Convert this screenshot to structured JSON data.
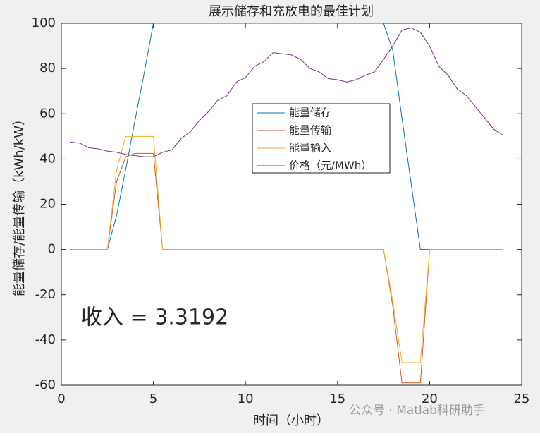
{
  "chart_data": {
    "type": "line",
    "title": "展示储存和充放电的最佳计划",
    "xlabel": "时间（小时）",
    "ylabel": "能量储存/能量传输（kWh/kW）",
    "annotation": "收入 = 3.3192",
    "watermark": "公众号 · Matlab科研助手",
    "x": [
      0.5,
      1,
      1.5,
      2,
      2.5,
      3,
      3.5,
      4,
      4.5,
      5,
      5.5,
      6,
      6.5,
      7,
      7.5,
      8,
      8.5,
      9,
      9.5,
      10,
      10.5,
      11,
      11.5,
      12,
      12.5,
      13,
      13.5,
      14,
      14.5,
      15,
      15.5,
      16,
      16.5,
      17,
      17.5,
      18,
      18.5,
      19,
      19.5,
      20,
      20.5,
      21,
      21.5,
      22,
      22.5,
      23,
      23.5,
      24
    ],
    "series": [
      {
        "name": "能量储存",
        "color": "#0072BD",
        "values": [
          0,
          0,
          0,
          0,
          0,
          15,
          35.5,
          57,
          78,
          100,
          100,
          100,
          100,
          100,
          100,
          100,
          100,
          100,
          100,
          100,
          100,
          100,
          100,
          100,
          100,
          100,
          100,
          100,
          100,
          100,
          100,
          100,
          100,
          100,
          100,
          88,
          58,
          29,
          0,
          0,
          0,
          0,
          0,
          0,
          0,
          0,
          0,
          0
        ]
      },
      {
        "name": "能量传输",
        "color": "#D95319",
        "values": [
          0,
          0,
          0,
          0,
          0,
          30,
          41,
          42.5,
          42.5,
          42.5,
          0,
          0,
          0,
          0,
          0,
          0,
          0,
          0,
          0,
          0,
          0,
          0,
          0,
          0,
          0,
          0,
          0,
          0,
          0,
          0,
          0,
          0,
          0,
          0,
          0,
          -25,
          -59,
          -59,
          -59,
          0,
          0,
          0,
          0,
          0,
          0,
          0,
          0,
          0
        ]
      },
      {
        "name": "能量输入",
        "color": "#EDB120",
        "values": [
          0,
          0,
          0,
          0,
          0,
          35,
          50,
          50,
          50,
          50,
          0,
          0,
          0,
          0,
          0,
          0,
          0,
          0,
          0,
          0,
          0,
          0,
          0,
          0,
          0,
          0,
          0,
          0,
          0,
          0,
          0,
          0,
          0,
          0,
          0,
          -23,
          -50,
          -50,
          -50,
          0,
          0,
          0,
          0,
          0,
          0,
          0,
          0,
          0
        ]
      },
      {
        "name": "价格（元/MWh）",
        "color": "#7E2F8E",
        "values": [
          47.5,
          47,
          45,
          44.5,
          43.5,
          43,
          42,
          41.5,
          41,
          41,
          43,
          44,
          49,
          52,
          57,
          61,
          66,
          68,
          74,
          76,
          81,
          83,
          87,
          86.5,
          86,
          84,
          80,
          78.5,
          75.5,
          75,
          74,
          75,
          77,
          78.5,
          84,
          90,
          97,
          98,
          96,
          90,
          81,
          77,
          71,
          68,
          63,
          58,
          53,
          50.5
        ]
      }
    ],
    "xlim": [
      0,
      25
    ],
    "xticks": [
      0,
      5,
      10,
      15,
      20,
      25
    ],
    "ylim": [
      -60,
      100
    ],
    "yticks": [
      -60,
      -40,
      -20,
      0,
      20,
      40,
      60,
      80,
      100
    ],
    "grid": false,
    "legend": "center"
  }
}
